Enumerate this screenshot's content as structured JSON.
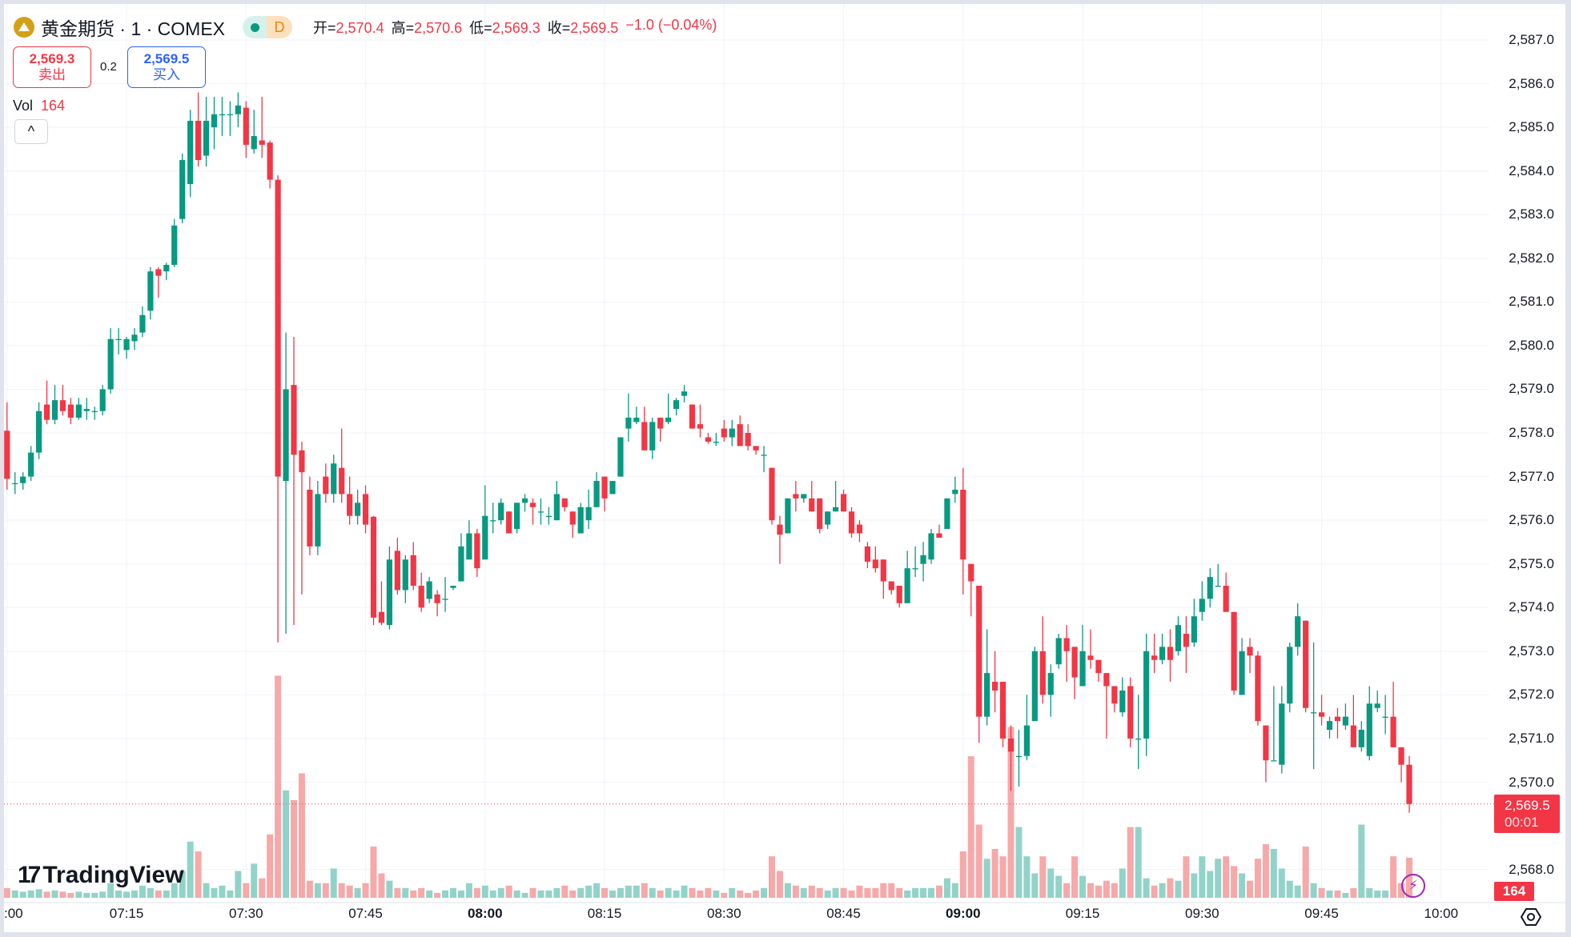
{
  "header": {
    "symbol": "黄金期货 · 1 · COMEX",
    "status_letter": "D",
    "open_label": "开=",
    "open": "2,570.4",
    "high_label": "高=",
    "high": "2,570.6",
    "low_label": "低=",
    "low": "2,569.3",
    "close_label": "收=",
    "close": "2,569.5",
    "change": "−1.0 (−0.04%)"
  },
  "quote": {
    "sell_price": "2,569.3",
    "sell_label": "卖出",
    "spread": "0.2",
    "buy_price": "2,569.5",
    "buy_label": "买入"
  },
  "volume": {
    "label": "Vol",
    "value": "164"
  },
  "collapse_label": "^",
  "last_price": {
    "price": "2,569.5",
    "countdown": "00:01"
  },
  "brand": "TradingView",
  "colors": {
    "up": "#089981",
    "down": "#f23645",
    "vol_up": "#92d3c9",
    "vol_down": "#f7a8a9"
  },
  "chart_data": {
    "type": "candlestick",
    "interval": "1m",
    "x_start": "07:00",
    "y_ticks": [
      2587,
      2586,
      2585,
      2584,
      2583,
      2582,
      2581,
      2580,
      2579,
      2578,
      2577,
      2576,
      2575,
      2574,
      2573,
      2572,
      2571,
      2570,
      2568
    ],
    "y_tick_labels": [
      "2,587.0",
      "2,586.0",
      "2,585.0",
      "2,584.0",
      "2,583.0",
      "2,582.0",
      "2,581.0",
      "2,580.0",
      "2,579.0",
      "2,578.0",
      "2,577.0",
      "2,576.0",
      "2,575.0",
      "2,574.0",
      "2,573.0",
      "2,572.0",
      "2,571.0",
      "2,570.0",
      "2,568.0"
    ],
    "x_ticks": [
      0,
      15,
      30,
      45,
      60,
      75,
      90,
      105,
      120,
      135,
      150,
      165,
      180
    ],
    "x_tick_labels": [
      ":00",
      "07:15",
      "07:30",
      "07:45",
      "08:00",
      "08:15",
      "08:30",
      "08:45",
      "09:00",
      "09:15",
      "09:30",
      "09:45",
      "10:00"
    ],
    "ohlc": [
      [
        2578.05,
        2578.7,
        2576.7,
        2576.95
      ],
      [
        2576.85,
        2577.1,
        2576.6,
        2576.85
      ],
      [
        2576.85,
        2577.1,
        2576.7,
        2577.0
      ],
      [
        2577.0,
        2577.7,
        2576.9,
        2577.55
      ],
      [
        2577.55,
        2578.7,
        2577.4,
        2578.5
      ],
      [
        2578.65,
        2579.2,
        2578.2,
        2578.3
      ],
      [
        2578.3,
        2579.1,
        2578.2,
        2578.75
      ],
      [
        2578.75,
        2579.1,
        2578.4,
        2578.5
      ],
      [
        2578.65,
        2578.8,
        2578.2,
        2578.35
      ],
      [
        2578.35,
        2578.8,
        2578.3,
        2578.65
      ],
      [
        2578.5,
        2578.8,
        2578.3,
        2578.55
      ],
      [
        2578.5,
        2578.6,
        2578.3,
        2578.5
      ],
      [
        2578.5,
        2579.1,
        2578.4,
        2579.0
      ],
      [
        2579.0,
        2580.4,
        2578.9,
        2580.15
      ],
      [
        2580.15,
        2580.4,
        2579.8,
        2580.15
      ],
      [
        2579.9,
        2580.2,
        2579.7,
        2580.15
      ],
      [
        2580.1,
        2580.4,
        2579.9,
        2580.25
      ],
      [
        2580.3,
        2580.9,
        2580.2,
        2580.7
      ],
      [
        2580.8,
        2581.8,
        2580.6,
        2581.7
      ],
      [
        2581.75,
        2581.8,
        2581.1,
        2581.6
      ],
      [
        2581.7,
        2581.9,
        2581.5,
        2581.85
      ],
      [
        2581.85,
        2582.9,
        2581.8,
        2582.75
      ],
      [
        2582.9,
        2584.4,
        2582.8,
        2584.25
      ],
      [
        2583.7,
        2585.4,
        2583.4,
        2585.15
      ],
      [
        2585.15,
        2585.8,
        2584.1,
        2584.25
      ],
      [
        2584.35,
        2585.7,
        2584.1,
        2585.15
      ],
      [
        2585.0,
        2585.7,
        2584.5,
        2585.3
      ],
      [
        2585.3,
        2585.7,
        2584.8,
        2585.3
      ],
      [
        2585.3,
        2585.6,
        2584.8,
        2585.3
      ],
      [
        2585.3,
        2585.8,
        2585.0,
        2585.5
      ],
      [
        2585.45,
        2585.6,
        2584.3,
        2584.6
      ],
      [
        2584.5,
        2585.4,
        2584.4,
        2584.8
      ],
      [
        2584.7,
        2585.7,
        2584.3,
        2584.6
      ],
      [
        2584.65,
        2584.7,
        2583.6,
        2583.8
      ],
      [
        2583.8,
        2583.9,
        2573.2,
        2577.0
      ],
      [
        2576.9,
        2580.3,
        2573.4,
        2579.0
      ],
      [
        2579.1,
        2580.2,
        2573.6,
        2577.5
      ],
      [
        2577.6,
        2577.8,
        2574.3,
        2577.1
      ],
      [
        2576.7,
        2577.0,
        2575.2,
        2575.4
      ],
      [
        2575.4,
        2576.9,
        2575.2,
        2576.6
      ],
      [
        2577.0,
        2577.3,
        2576.4,
        2576.6
      ],
      [
        2576.6,
        2577.5,
        2576.4,
        2577.3
      ],
      [
        2577.2,
        2578.1,
        2576.4,
        2576.6
      ],
      [
        2576.6,
        2577.0,
        2575.9,
        2576.1
      ],
      [
        2576.1,
        2576.7,
        2575.9,
        2576.4
      ],
      [
        2576.6,
        2576.8,
        2575.7,
        2575.9
      ],
      [
        2576.08,
        2576.1,
        2573.6,
        2573.77
      ],
      [
        2573.9,
        2574.6,
        2573.6,
        2573.65
      ],
      [
        2573.6,
        2575.4,
        2573.5,
        2575.1
      ],
      [
        2575.3,
        2575.6,
        2574.3,
        2574.4
      ],
      [
        2574.4,
        2575.2,
        2574.1,
        2575.1
      ],
      [
        2575.2,
        2575.5,
        2574.4,
        2574.5
      ],
      [
        2574.5,
        2574.8,
        2573.9,
        2574.0
      ],
      [
        2574.2,
        2574.7,
        2574.1,
        2574.6
      ],
      [
        2574.3,
        2574.4,
        2573.8,
        2574.1
      ],
      [
        2574.2,
        2574.7,
        2573.9,
        2574.2
      ],
      [
        2574.45,
        2574.5,
        2574.4,
        2574.5
      ],
      [
        2574.6,
        2575.7,
        2574.6,
        2575.4
      ],
      [
        2575.1,
        2576.0,
        2575.1,
        2575.7
      ],
      [
        2575.7,
        2575.8,
        2574.7,
        2574.9
      ],
      [
        2575.1,
        2576.8,
        2575.1,
        2576.1
      ],
      [
        2576.0,
        2576.4,
        2575.7,
        2576.0
      ],
      [
        2576.0,
        2576.5,
        2575.9,
        2576.4
      ],
      [
        2576.2,
        2576.2,
        2575.7,
        2575.7
      ],
      [
        2575.8,
        2576.4,
        2575.7,
        2576.4
      ],
      [
        2576.4,
        2576.6,
        2576.2,
        2576.5
      ],
      [
        2576.4,
        2576.5,
        2575.9,
        2576.3
      ],
      [
        2576.2,
        2576.5,
        2575.9,
        2576.2
      ],
      [
        2576.1,
        2576.3,
        2575.9,
        2576.1
      ],
      [
        2576.0,
        2576.9,
        2576.0,
        2576.6
      ],
      [
        2576.5,
        2576.5,
        2576.2,
        2576.3
      ],
      [
        2576.2,
        2576.2,
        2575.6,
        2575.9
      ],
      [
        2575.7,
        2576.4,
        2575.7,
        2576.3
      ],
      [
        2576.0,
        2576.7,
        2575.8,
        2576.3
      ],
      [
        2576.3,
        2577.1,
        2576.3,
        2576.9
      ],
      [
        2577.0,
        2577.0,
        2576.2,
        2576.5
      ],
      [
        2576.6,
        2576.9,
        2576.6,
        2576.9
      ],
      [
        2577.0,
        2577.9,
        2577.0,
        2577.9
      ],
      [
        2578.1,
        2578.9,
        2577.8,
        2578.35
      ],
      [
        2578.25,
        2578.6,
        2578.2,
        2578.35
      ],
      [
        2578.25,
        2578.6,
        2577.6,
        2577.6
      ],
      [
        2577.6,
        2578.35,
        2577.4,
        2578.25
      ],
      [
        2578.35,
        2578.35,
        2577.8,
        2578.1
      ],
      [
        2578.25,
        2578.9,
        2578.2,
        2578.35
      ],
      [
        2578.55,
        2578.8,
        2578.4,
        2578.75
      ],
      [
        2578.85,
        2579.1,
        2578.7,
        2578.95
      ],
      [
        2578.65,
        2578.65,
        2578.1,
        2578.1
      ],
      [
        2578.2,
        2578.65,
        2577.9,
        2578.1
      ],
      [
        2577.9,
        2578.0,
        2577.75,
        2577.8
      ],
      [
        2577.8,
        2578.0,
        2577.7,
        2577.8
      ],
      [
        2578.1,
        2578.3,
        2577.8,
        2577.9
      ],
      [
        2577.9,
        2578.3,
        2577.7,
        2578.1
      ],
      [
        2578.2,
        2578.4,
        2577.7,
        2577.7
      ],
      [
        2578.0,
        2578.2,
        2577.6,
        2577.7
      ],
      [
        2577.7,
        2577.7,
        2577.5,
        2577.6
      ],
      [
        2577.5,
        2577.7,
        2577.1,
        2577.5
      ],
      [
        2577.2,
        2577.2,
        2575.9,
        2576.0
      ],
      [
        2575.9,
        2576.1,
        2575.0,
        2575.67
      ],
      [
        2575.7,
        2576.5,
        2575.7,
        2576.5
      ],
      [
        2576.6,
        2576.9,
        2576.2,
        2576.5
      ],
      [
        2576.5,
        2576.6,
        2576.4,
        2576.6
      ],
      [
        2576.5,
        2576.9,
        2576.2,
        2576.2
      ],
      [
        2576.5,
        2576.5,
        2575.7,
        2575.8
      ],
      [
        2575.9,
        2576.2,
        2575.8,
        2576.2
      ],
      [
        2576.2,
        2576.9,
        2576.2,
        2576.3
      ],
      [
        2576.6,
        2576.7,
        2576.2,
        2576.2
      ],
      [
        2576.2,
        2576.3,
        2575.6,
        2575.7
      ],
      [
        2575.9,
        2576.0,
        2575.5,
        2575.7
      ],
      [
        2575.4,
        2575.5,
        2574.9,
        2575.05
      ],
      [
        2575.1,
        2575.4,
        2574.8,
        2574.9
      ],
      [
        2575.1,
        2575.1,
        2574.2,
        2574.6
      ],
      [
        2574.6,
        2574.6,
        2574.3,
        2574.4
      ],
      [
        2574.5,
        2574.5,
        2574.0,
        2574.1
      ],
      [
        2574.1,
        2575.3,
        2574.1,
        2574.9
      ],
      [
        2574.9,
        2575.4,
        2574.7,
        2574.9
      ],
      [
        2575.0,
        2575.5,
        2574.6,
        2575.2
      ],
      [
        2575.1,
        2575.8,
        2575.0,
        2575.7
      ],
      [
        2575.7,
        2575.9,
        2575.6,
        2575.6
      ],
      [
        2575.8,
        2576.5,
        2575.8,
        2576.5
      ],
      [
        2576.6,
        2577.0,
        2576.4,
        2576.7
      ],
      [
        2576.7,
        2577.2,
        2574.3,
        2575.1
      ],
      [
        2575.0,
        2575.0,
        2573.8,
        2574.6
      ],
      [
        2574.5,
        2574.5,
        2570.9,
        2571.5
      ],
      [
        2571.5,
        2573.5,
        2571.3,
        2572.5
      ],
      [
        2572.3,
        2573.0,
        2571.6,
        2572.1
      ],
      [
        2572.3,
        2572.3,
        2570.8,
        2571.0
      ],
      [
        2571.0,
        2571.3,
        2569.8,
        2570.7
      ],
      [
        2570.6,
        2571.2,
        2569.9,
        2570.6
      ],
      [
        2570.6,
        2572.0,
        2570.5,
        2571.3
      ],
      [
        2571.4,
        2573.1,
        2571.4,
        2573.0
      ],
      [
        2573.0,
        2573.8,
        2571.8,
        2572.0
      ],
      [
        2572.0,
        2572.7,
        2571.5,
        2572.5
      ],
      [
        2572.7,
        2573.4,
        2572.6,
        2573.3
      ],
      [
        2573.3,
        2573.6,
        2572.3,
        2573.0
      ],
      [
        2573.1,
        2573.1,
        2571.9,
        2572.4
      ],
      [
        2572.2,
        2573.6,
        2572.2,
        2573.0
      ],
      [
        2572.9,
        2573.5,
        2572.6,
        2572.8
      ],
      [
        2572.8,
        2572.8,
        2572.3,
        2572.5
      ],
      [
        2572.5,
        2572.5,
        2571.0,
        2572.2
      ],
      [
        2572.2,
        2572.2,
        2571.6,
        2571.8
      ],
      [
        2571.6,
        2572.4,
        2571.5,
        2572.1
      ],
      [
        2572.2,
        2572.4,
        2570.8,
        2571.0
      ],
      [
        2571.0,
        2572.0,
        2570.3,
        2571.0
      ],
      [
        2571.0,
        2573.4,
        2570.6,
        2573.0
      ],
      [
        2572.9,
        2573.4,
        2572.5,
        2572.8
      ],
      [
        2572.8,
        2573.4,
        2572.7,
        2573.1
      ],
      [
        2573.1,
        2573.5,
        2572.3,
        2572.8
      ],
      [
        2573.0,
        2573.8,
        2572.9,
        2573.6
      ],
      [
        2573.4,
        2573.8,
        2572.5,
        2573.1
      ],
      [
        2573.2,
        2574.2,
        2573.1,
        2573.8
      ],
      [
        2573.9,
        2574.6,
        2573.7,
        2574.2
      ],
      [
        2574.2,
        2574.9,
        2574.0,
        2574.7
      ],
      [
        2574.5,
        2575.0,
        2574.5,
        2574.5
      ],
      [
        2574.5,
        2574.8,
        2573.9,
        2573.9
      ],
      [
        2573.9,
        2573.9,
        2572.0,
        2572.1
      ],
      [
        2572.0,
        2573.3,
        2572.0,
        2573.0
      ],
      [
        2573.1,
        2573.3,
        2572.5,
        2572.9
      ],
      [
        2572.9,
        2573.0,
        2571.3,
        2571.4
      ],
      [
        2571.3,
        2571.3,
        2570.0,
        2570.5
      ],
      [
        2570.5,
        2572.2,
        2570.5,
        2570.5
      ],
      [
        2570.4,
        2572.2,
        2570.2,
        2571.8
      ],
      [
        2571.8,
        2573.2,
        2571.6,
        2573.1
      ],
      [
        2573.1,
        2574.1,
        2572.9,
        2573.8
      ],
      [
        2573.7,
        2573.7,
        2571.6,
        2571.7
      ],
      [
        2571.6,
        2573.2,
        2570.3,
        2571.6
      ],
      [
        2571.6,
        2572.0,
        2571.3,
        2571.5
      ],
      [
        2571.2,
        2571.5,
        2571.0,
        2571.4
      ],
      [
        2571.5,
        2571.7,
        2571.0,
        2571.4
      ],
      [
        2571.3,
        2571.8,
        2571.2,
        2571.5
      ],
      [
        2571.3,
        2572.0,
        2570.8,
        2570.8
      ],
      [
        2570.8,
        2571.4,
        2570.7,
        2571.2
      ],
      [
        2570.6,
        2572.2,
        2570.5,
        2571.8
      ],
      [
        2571.7,
        2572.1,
        2571.6,
        2571.8
      ],
      [
        2571.5,
        2572.0,
        2571.1,
        2571.5
      ],
      [
        2571.5,
        2572.3,
        2570.8,
        2570.8
      ],
      [
        2570.8,
        2570.8,
        2570.0,
        2570.4
      ],
      [
        2570.4,
        2570.6,
        2569.3,
        2569.5
      ]
    ],
    "volume": [
      40,
      30,
      25,
      30,
      35,
      25,
      30,
      25,
      20,
      25,
      20,
      20,
      25,
      60,
      30,
      25,
      30,
      50,
      40,
      30,
      30,
      60,
      110,
      230,
      190,
      60,
      40,
      50,
      30,
      110,
      60,
      140,
      80,
      260,
      910,
      440,
      400,
      510,
      70,
      60,
      60,
      120,
      60,
      50,
      40,
      60,
      210,
      100,
      70,
      40,
      40,
      30,
      40,
      30,
      20,
      30,
      40,
      30,
      60,
      40,
      50,
      30,
      40,
      50,
      30,
      20,
      40,
      30,
      30,
      40,
      50,
      30,
      40,
      50,
      60,
      40,
      30,
      40,
      50,
      50,
      60,
      40,
      30,
      40,
      30,
      50,
      40,
      30,
      40,
      30,
      20,
      40,
      30,
      20,
      30,
      40,
      170,
      110,
      60,
      50,
      40,
      50,
      40,
      30,
      40,
      40,
      30,
      50,
      40,
      40,
      60,
      60,
      40,
      30,
      40,
      40,
      40,
      50,
      80,
      60,
      190,
      580,
      300,
      160,
      200,
      170,
      700,
      290,
      170,
      100,
      170,
      120,
      90,
      60,
      170,
      90,
      60,
      50,
      70,
      60,
      120,
      290,
      290,
      80,
      50,
      60,
      80,
      70,
      170,
      100,
      170,
      110,
      160,
      170,
      130,
      100,
      70,
      160,
      220,
      200,
      120,
      70,
      50,
      210,
      60,
      40,
      30,
      30,
      20,
      40,
      300,
      40,
      30,
      30,
      170,
      60,
      164
    ]
  }
}
